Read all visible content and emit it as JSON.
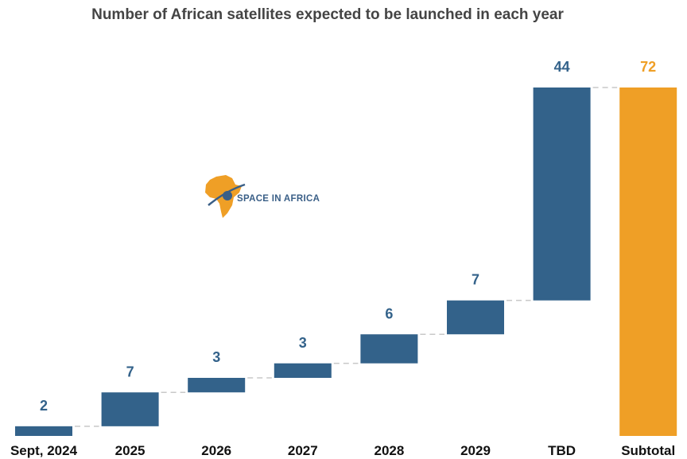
{
  "chart_data": {
    "type": "bar",
    "subtype": "waterfall",
    "title": "Number of African satellites expected to be launched in each year",
    "categories": [
      "Sept, 2024",
      "2025",
      "2026",
      "2027",
      "2028",
      "2029",
      "TBD",
      "Subtotal"
    ],
    "values": [
      2,
      7,
      3,
      3,
      6,
      7,
      44,
      72
    ],
    "value_labels": [
      "2",
      "7",
      "3",
      "3",
      "6",
      "7",
      "44",
      "72"
    ],
    "total_index": 7,
    "ylim": [
      0,
      72
    ],
    "grid": false,
    "connectors": "dashed",
    "colors": {
      "increment": "#33628a",
      "total": "#ef9f26",
      "connector": "#c8c8c8"
    }
  },
  "logo": {
    "text": "SPACE IN AFRICA",
    "colors": {
      "continent": "#ef9f26",
      "mark": "#3a5f87"
    }
  }
}
